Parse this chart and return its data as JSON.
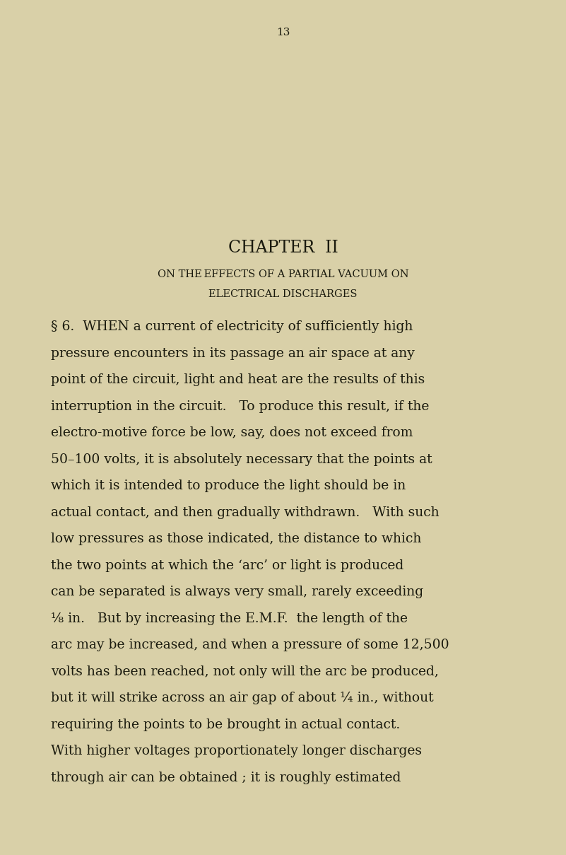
{
  "background_color": "#d9d0a8",
  "page_number": "13",
  "chapter_title": "CHAPTER  II",
  "subtitle_line1": "ON THE EFFECTS OF A PARTIAL VACUUM ON",
  "subtitle_line2": "ELECTRICAL DISCHARGES",
  "paragraph": "§ 6.  When a current of electricity of sufficiently high pressure encounters in its passage an air space at any point of the circuit, light and heat are the results of this interruption in the circuit.   To produce this result, if the electro-motive force be low, say, does not exceed from 50–100 volts, it is absolutely necessary that the points at which it is intended to produce the light should be in actual contact, and then gradually withdrawn.   With such low pressures as those indicated, the distance to which the two points at which the ‘arc’ or light is produced can be separated is always very small, rarely exceeding ⅛ in.   But by increasing the E.M.F.  the length of the arc may be increased, and when a pressure of some 12,500 volts has been reached, not only will the arc be produced, but it will strike across an air gap of about ¼ in., without requiring the points to be brought in actual contact. With higher voltages proportionately longer discharges through air can be obtained ; it is roughly estimated",
  "text_color": "#1a1a0e",
  "page_number_color": "#1a1a0e",
  "chapter_title_fontsize": 17,
  "subtitle_fontsize": 10.5,
  "body_fontsize": 13.5,
  "page_number_fontsize": 11
}
